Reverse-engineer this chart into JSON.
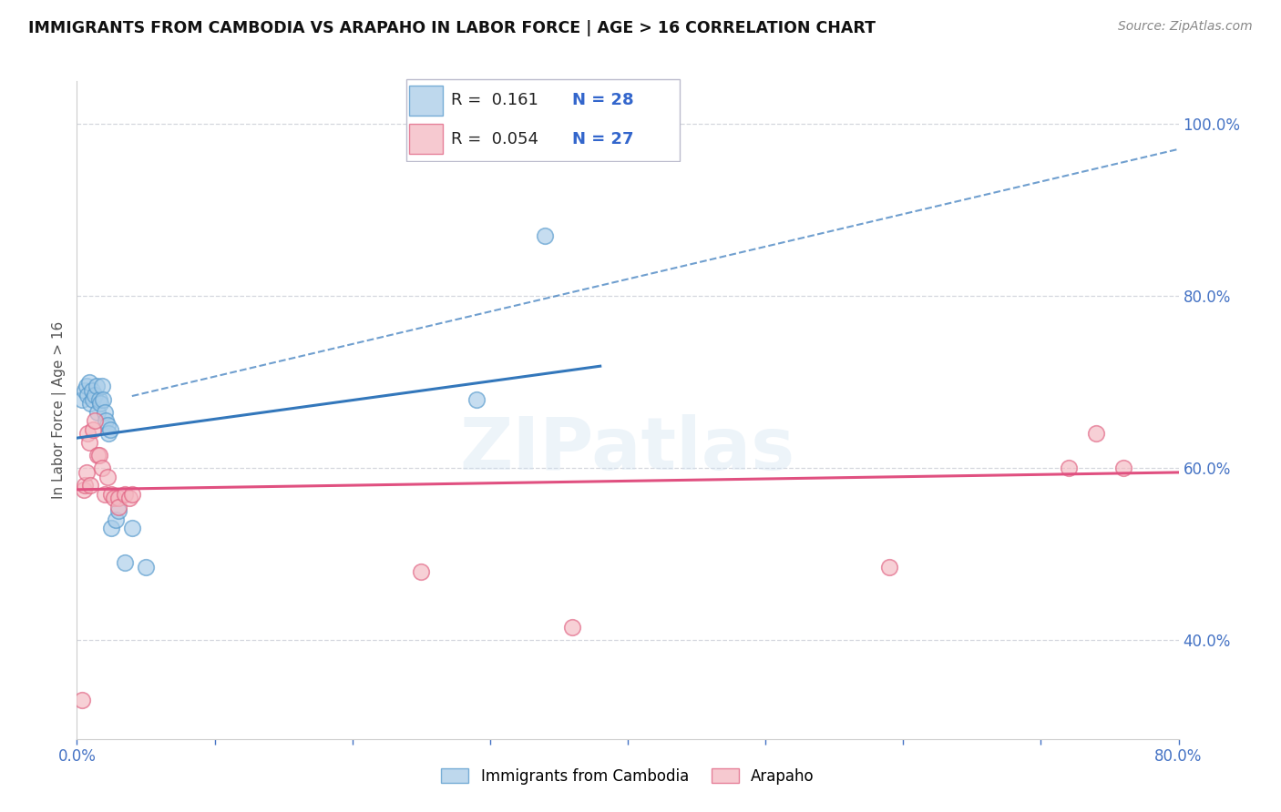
{
  "title": "IMMIGRANTS FROM CAMBODIA VS ARAPAHO IN LABOR FORCE | AGE > 16 CORRELATION CHART",
  "source": "Source: ZipAtlas.com",
  "ylabel": "In Labor Force | Age > 16",
  "x_tick_labels": [
    "0.0%",
    "",
    "",
    "",
    "",
    "",
    "",
    "",
    "80.0%"
  ],
  "x_tick_vals": [
    0.0,
    0.1,
    0.2,
    0.3,
    0.4,
    0.5,
    0.6,
    0.7,
    0.8
  ],
  "y_tick_labels": [
    "40.0%",
    "60.0%",
    "80.0%",
    "100.0%"
  ],
  "y_tick_vals": [
    0.4,
    0.6,
    0.8,
    1.0
  ],
  "xlim": [
    0.0,
    0.8
  ],
  "ylim": [
    0.285,
    1.05
  ],
  "cambodia_color": "#a8cce8",
  "arapaho_color": "#f4b8c1",
  "cambodia_edge": "#5599cc",
  "arapaho_edge": "#e06080",
  "legend_r_cambodia": "0.161",
  "legend_n_cambodia": "28",
  "legend_r_arapaho": "0.054",
  "legend_n_arapaho": "27",
  "trend_blue_color": "#3377bb",
  "trend_pink_color": "#e05080",
  "watermark": "ZIPatlas",
  "cambodia_x": [
    0.004,
    0.006,
    0.007,
    0.008,
    0.009,
    0.01,
    0.011,
    0.012,
    0.013,
    0.014,
    0.015,
    0.016,
    0.017,
    0.018,
    0.019,
    0.02,
    0.021,
    0.022,
    0.023,
    0.024,
    0.025,
    0.028,
    0.03,
    0.035,
    0.04,
    0.05,
    0.29,
    0.34
  ],
  "cambodia_y": [
    0.68,
    0.69,
    0.695,
    0.685,
    0.7,
    0.675,
    0.69,
    0.68,
    0.685,
    0.695,
    0.665,
    0.68,
    0.675,
    0.695,
    0.68,
    0.665,
    0.655,
    0.65,
    0.64,
    0.645,
    0.53,
    0.54,
    0.55,
    0.49,
    0.53,
    0.485,
    0.68,
    0.87
  ],
  "arapaho_x": [
    0.004,
    0.005,
    0.006,
    0.007,
    0.008,
    0.009,
    0.01,
    0.012,
    0.013,
    0.015,
    0.016,
    0.018,
    0.02,
    0.022,
    0.025,
    0.027,
    0.03,
    0.03,
    0.035,
    0.038,
    0.04,
    0.25,
    0.36,
    0.59,
    0.72,
    0.74,
    0.76
  ],
  "arapaho_y": [
    0.33,
    0.575,
    0.58,
    0.595,
    0.64,
    0.63,
    0.58,
    0.645,
    0.655,
    0.615,
    0.615,
    0.6,
    0.57,
    0.59,
    0.57,
    0.565,
    0.565,
    0.555,
    0.57,
    0.565,
    0.57,
    0.48,
    0.415,
    0.485,
    0.6,
    0.64,
    0.6
  ]
}
